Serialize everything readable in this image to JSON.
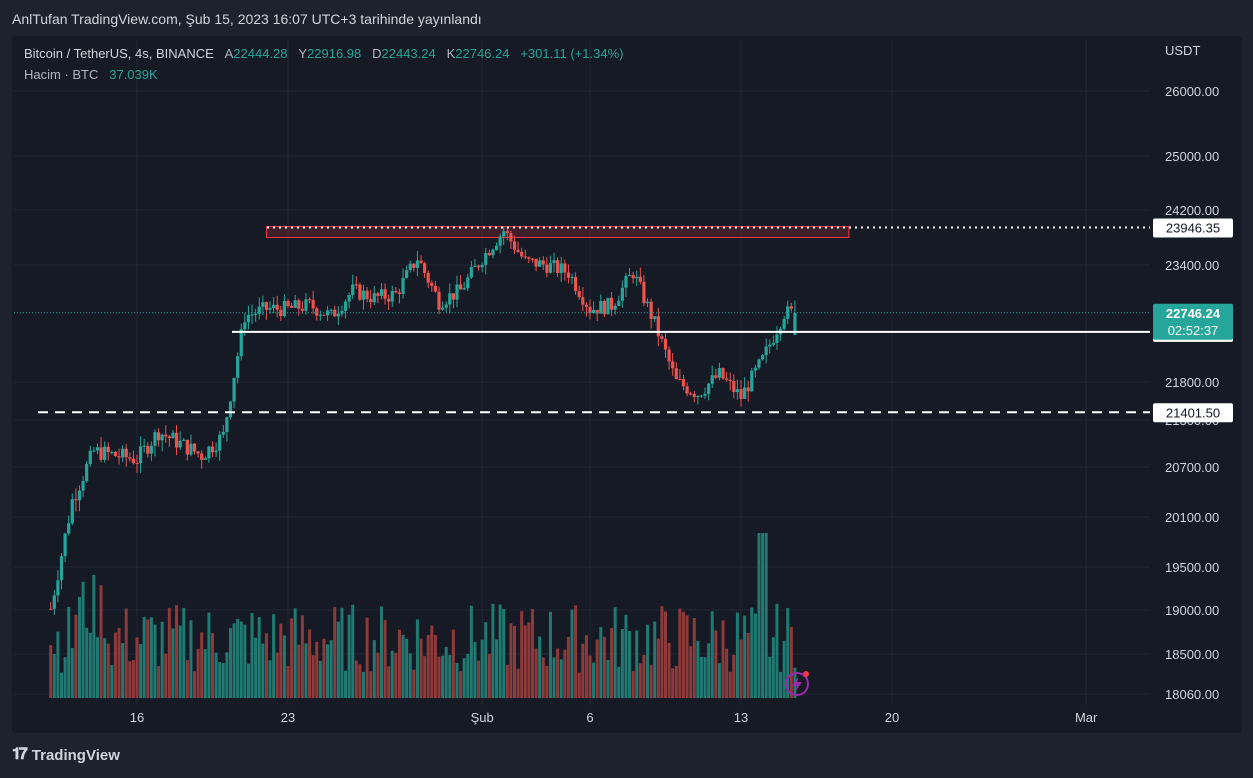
{
  "header": {
    "publish_line": "AnlTufan TradingView.com, Şub 15, 2023 16:07 UTC+3 tarihinde yayınlandı"
  },
  "legend": {
    "symbol": "Bitcoin / TetherUS, 4s, BINANCE",
    "open_label": "A",
    "open": "22444.28",
    "high_label": "Y",
    "high": "22916.98",
    "low_label": "D",
    "low": "22443.24",
    "close_label": "K",
    "close": "22746.24",
    "change": "+301.11 (+1.34%)",
    "volume_label": "Hacim · BTC",
    "volume": "37.039K"
  },
  "footer": {
    "brand": "TradingView"
  },
  "colors": {
    "up": "#26a69a",
    "down": "#ef5350",
    "up_vol": "#1f7a72",
    "down_vol": "#8f3a3a",
    "grid": "#232733",
    "axis_text": "#d1d4dc",
    "zone": "#f23645",
    "price_tag": "#26a69a"
  },
  "chart_data": {
    "type": "candlestick",
    "title": "Bitcoin / TetherUS, 4s, BINANCE",
    "currency": "USDT",
    "y_ticks": [
      "26000.00",
      "25000.00",
      "24200.00",
      "23400.00",
      "21800.00",
      "21300.00",
      "20700.00",
      "20100.00",
      "19500.00",
      "19000.00",
      "18500.00",
      "18060.00"
    ],
    "x_ticks": [
      "16",
      "23",
      "Şub",
      "6",
      "13",
      "20",
      "Mar"
    ],
    "price_path": [
      [
        "Jan 12",
        19000
      ],
      [
        "Jan 13",
        20300
      ],
      [
        "Jan 14",
        20900
      ],
      [
        "Jan 15",
        20850
      ],
      [
        "Jan 16",
        20800
      ],
      [
        "Jan 17",
        21150
      ],
      [
        "Jan 18",
        21000
      ],
      [
        "Jan 19",
        20850
      ],
      [
        "Jan 20",
        21100
      ],
      [
        "Jan 21",
        22700
      ],
      [
        "Jan 22",
        22800
      ],
      [
        "Jan 23",
        22800
      ],
      [
        "Jan 24",
        22850
      ],
      [
        "Jan 25",
        22700
      ],
      [
        "Jan 26",
        23050
      ],
      [
        "Jan 27",
        22950
      ],
      [
        "Jan 28",
        23000
      ],
      [
        "Jan 29",
        23500
      ],
      [
        "Jan 30",
        22900
      ],
      [
        "Jan 31",
        23050
      ],
      [
        "Feb 1",
        23500
      ],
      [
        "Feb 2",
        23900
      ],
      [
        "Feb 3",
        23450
      ],
      [
        "Feb 4",
        23400
      ],
      [
        "Feb 5",
        23300
      ],
      [
        "Feb 6",
        22800
      ],
      [
        "Feb 7",
        22850
      ],
      [
        "Feb 8",
        23300
      ],
      [
        "Feb 9",
        22600
      ],
      [
        "Feb 10",
        21800
      ],
      [
        "Feb 11",
        21650
      ],
      [
        "Feb 12",
        21900
      ],
      [
        "Feb 13",
        21600
      ],
      [
        "Feb 14",
        22100
      ],
      [
        "Feb 15",
        22746
      ]
    ],
    "levels": [
      {
        "label": "23946.35",
        "value": 23946.35,
        "style": "dotted"
      },
      {
        "label": "22485.94",
        "value": 22485.94,
        "style": "solid"
      },
      {
        "label": "21401.50",
        "value": 21401.5,
        "style": "dashed"
      }
    ],
    "zone": {
      "from_date": "Jan 22",
      "to_date": "Feb 18",
      "low": 23800,
      "high": 23960
    },
    "current_price": {
      "label": "22746.24",
      "countdown": "02:52:37"
    },
    "volume_peak": "Feb 14"
  }
}
